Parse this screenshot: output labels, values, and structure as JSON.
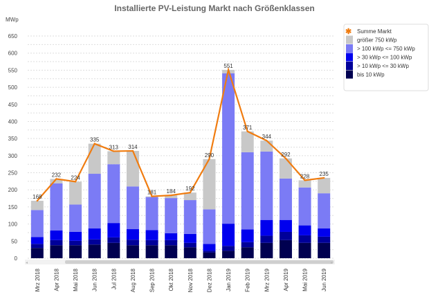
{
  "chart_data": {
    "type": "bar",
    "stacked": true,
    "title": "Installierte PV-Leistung Markt nach Größenklassen",
    "ylabel": "MWp",
    "xlabel": "",
    "ylim": [
      0,
      650
    ],
    "yticks": [
      0,
      50,
      100,
      150,
      200,
      250,
      300,
      350,
      400,
      450,
      500,
      550,
      600,
      650
    ],
    "grid": true,
    "legend_position": "right",
    "categories": [
      "Mrz 2018",
      "Apr 2018",
      "Mai 2018",
      "Jun 2018",
      "Jul 2018",
      "Aug 2018",
      "Sep 2018",
      "Okt 2018",
      "Nov 2018",
      "Dez 2018",
      "Jan 2019",
      "Feb 2019",
      "Mrz 2019",
      "Apr 2019",
      "Mai 2019",
      "Jun 2019"
    ],
    "series": [
      {
        "name": "bis 10 kWp",
        "color": "#000050",
        "values": [
          30,
          38,
          38,
          40,
          45,
          38,
          38,
          38,
          32,
          17,
          22,
          32,
          45,
          53,
          45,
          45
        ]
      },
      {
        "name": "> 10 kWp <= 30 kWp",
        "color": "#000099",
        "values": [
          12,
          15,
          13,
          15,
          16,
          16,
          15,
          15,
          13,
          5,
          14,
          15,
          21,
          24,
          22,
          18
        ]
      },
      {
        "name": "> 30 kWp <= 100 kWp",
        "color": "#0000ee",
        "values": [
          20,
          28,
          26,
          32,
          42,
          31,
          29,
          20,
          26,
          20,
          65,
          37,
          46,
          35,
          29,
          24
        ]
      },
      {
        "name": "> 100 kWp <= 750 kWp",
        "color": "#7b7bf5",
        "values": [
          79,
          138,
          80,
          160,
          172,
          125,
          97,
          103,
          99,
          101,
          440,
          226,
          200,
          121,
          111,
          103
        ]
      },
      {
        "name": "größer 750 kWp",
        "color": "#c8c8c8",
        "values": [
          27,
          13,
          67,
          88,
          38,
          104,
          2,
          8,
          22,
          147,
          10,
          61,
          32,
          59,
          21,
          45
        ]
      }
    ],
    "line": {
      "name": "Summe Markt",
      "color": "#f07c10",
      "values": [
        168,
        232,
        224,
        335,
        313,
        314,
        181,
        184,
        192,
        290,
        551,
        371,
        344,
        292,
        228,
        235
      ]
    },
    "legend_order": [
      "Summe Markt",
      "größer 750 kWp",
      "> 100 kWp <= 750 kWp",
      "> 30 kWp <= 100 kWp",
      "> 10 kWp <= 30 kWp",
      "bis 10 kWp"
    ]
  }
}
